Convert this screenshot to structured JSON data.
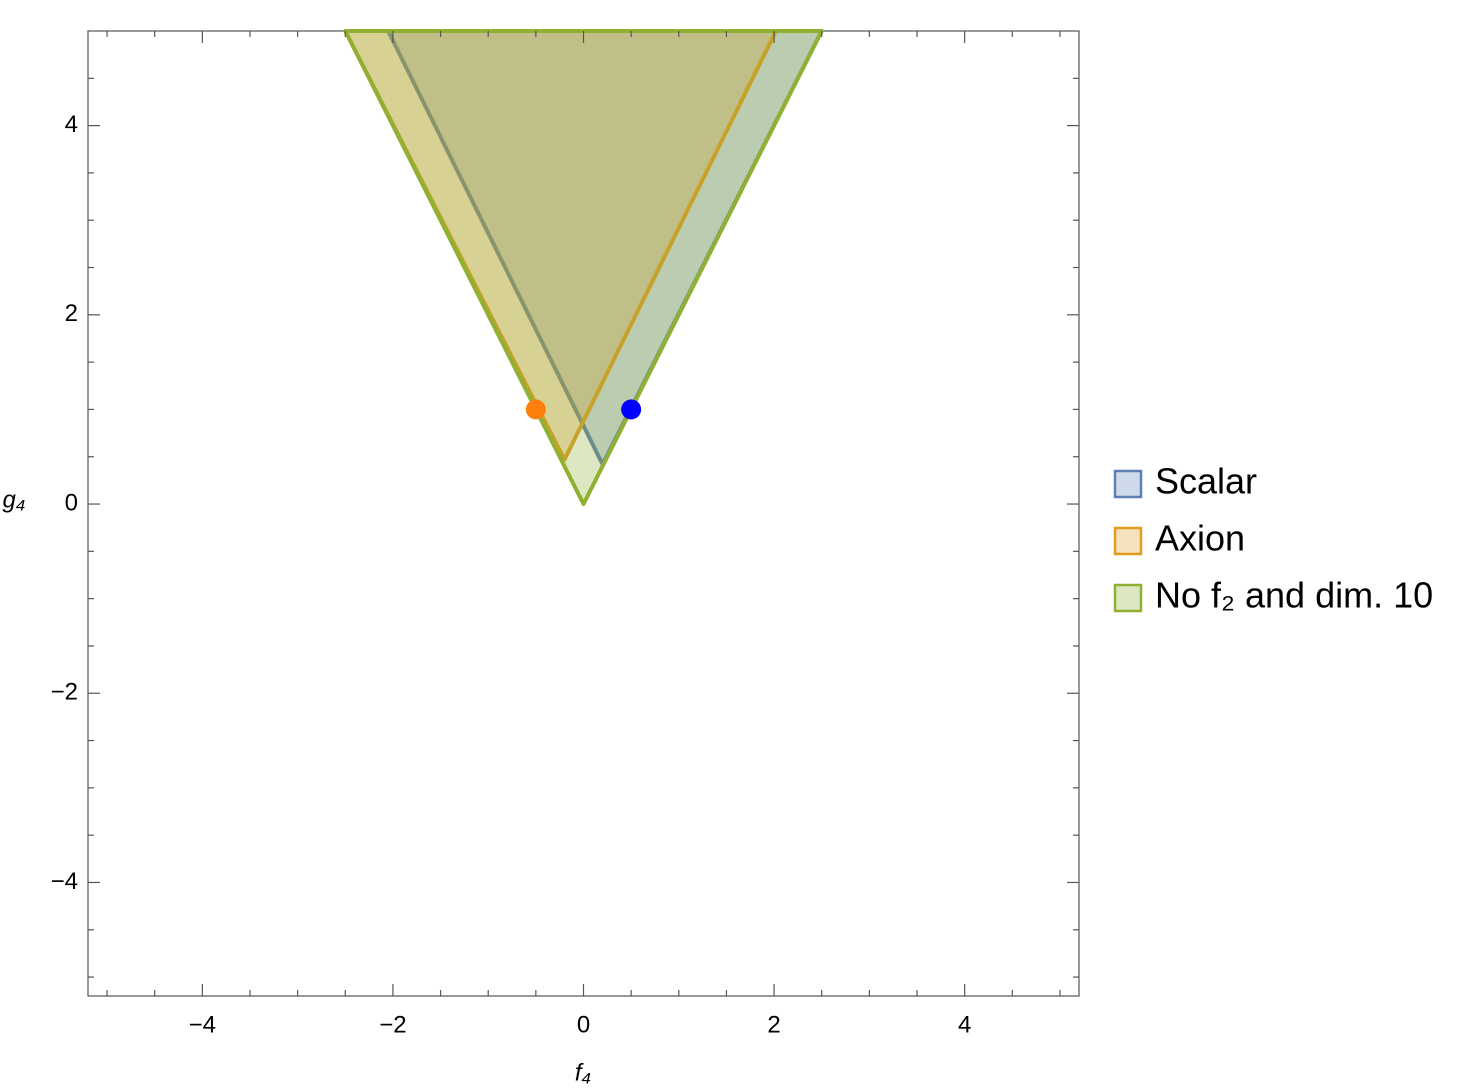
{
  "chart_data": {
    "type": "region",
    "x_label": "f₄",
    "y_label": "g₄",
    "xlim": [
      -5.2,
      5.2
    ],
    "ylim": [
      -5.2,
      5
    ],
    "xticks": [
      {
        "value": -4,
        "label": "−4"
      },
      {
        "value": -2,
        "label": "−2"
      },
      0,
      2,
      4
    ],
    "yticks": [
      {
        "value": -4,
        "label": "−4"
      },
      {
        "value": -2,
        "label": "−2"
      },
      0,
      2,
      4
    ],
    "xminorticks": [
      -5,
      -4.5,
      -3.5,
      -3,
      -2.5,
      -1.5,
      -1,
      -0.5,
      0.5,
      1,
      1.5,
      2.5,
      3,
      3.5,
      4.5,
      5
    ],
    "yminorticks": [
      -5,
      -4.5,
      -3.5,
      -3,
      -2.5,
      -1.5,
      -1,
      -0.5,
      0.5,
      1,
      1.5,
      2.5,
      3,
      3.5,
      4.5
    ],
    "legend": "right",
    "series": [
      {
        "name": "Scalar",
        "color": "#5e81b5",
        "x": [
          -2.05,
          0.2,
          2.5
        ],
        "y": [
          5,
          0.42,
          5
        ]
      },
      {
        "name": "Axion",
        "color": "#e19c24",
        "x": [
          -2.5,
          -0.2,
          2.02
        ],
        "y": [
          5,
          0.47,
          5
        ]
      },
      {
        "name": "No f₂ and dim. 10",
        "color": "#8fb032",
        "x": [
          -2.5,
          0,
          2.5
        ],
        "y": [
          5,
          0,
          5
        ]
      }
    ],
    "points": [
      {
        "x": -0.5,
        "y": 1,
        "color": "#ff7f0e"
      },
      {
        "x": 0.5,
        "y": 1,
        "color": "#0000ff"
      }
    ]
  }
}
